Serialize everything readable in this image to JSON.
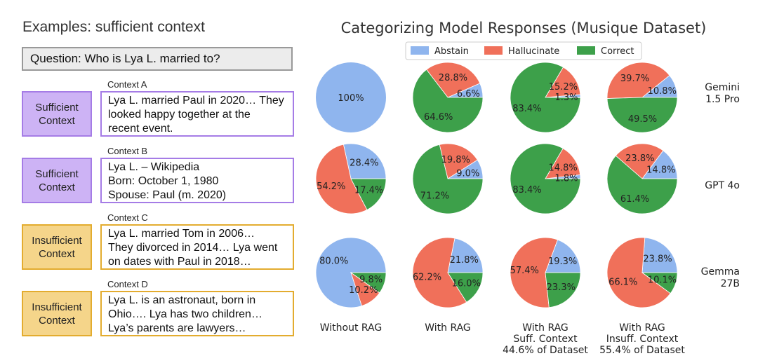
{
  "left": {
    "title": "Examples: sufficient context",
    "question": "Question: Who is Lya L. married to?",
    "examples": [
      {
        "context_label": "Context A",
        "tag": [
          "Sufficient",
          "Context"
        ],
        "kind": "suff",
        "lines": [
          "Lya L. married Paul in 2020… They",
          "looked happy together at the",
          "recent event."
        ]
      },
      {
        "context_label": "Context B",
        "tag": [
          "Sufficient",
          "Context"
        ],
        "kind": "suff",
        "lines": [
          "Lya L. – Wikipedia",
          "Born: October 1, 1980",
          "Spouse: Paul (m. 2020)"
        ]
      },
      {
        "context_label": "Context C",
        "tag": [
          "Insufficient",
          "Context"
        ],
        "kind": "insuff",
        "lines": [
          "Lya L. married Tom in 2006…",
          "They divorced in 2014… Lya went",
          "on dates with Paul in 2018…"
        ]
      },
      {
        "context_label": "Context D",
        "tag": [
          "Insufficient",
          "Context"
        ],
        "kind": "insuff",
        "lines": [
          "Lya L. is an astronaut, born in",
          "Ohio…. Lya has two children…",
          "Lya’s parents are lawyers…"
        ]
      }
    ]
  },
  "chart_data": {
    "type": "pie",
    "title": "Categorizing Model Responses (Musique Dataset)",
    "legend": [
      {
        "name": "Abstain",
        "color": "#8fb5ee"
      },
      {
        "name": "Hallucinate",
        "color": "#f0705a"
      },
      {
        "name": "Correct",
        "color": "#3da04a"
      }
    ],
    "legend_position": "top",
    "columns": [
      [
        "Without RAG"
      ],
      [
        "With RAG"
      ],
      [
        "With RAG",
        "Suff. Context",
        "44.6% of Dataset"
      ],
      [
        "With RAG",
        "Insuff. Context",
        "55.4% of Dataset"
      ]
    ],
    "rows": [
      [
        "Gemini",
        "1.5 Pro"
      ],
      [
        "GPT 4o"
      ],
      [
        "Gemma",
        "27B"
      ]
    ],
    "pies": [
      [
        {
          "abstain": 100,
          "hallucinate": 0,
          "correct": 0,
          "labels": [
            "100%",
            "",
            ""
          ]
        },
        {
          "abstain": 6.6,
          "hallucinate": 28.8,
          "correct": 64.6,
          "labels": [
            "6.6%",
            "28.8%",
            "64.6%"
          ]
        },
        {
          "abstain": 1.3,
          "hallucinate": 15.2,
          "correct": 83.4,
          "labels": [
            "1.3%",
            "15.2%",
            "83.4%"
          ]
        },
        {
          "abstain": 10.8,
          "hallucinate": 39.7,
          "correct": 49.5,
          "labels": [
            "10.8%",
            "39.7%",
            "49.5%"
          ]
        }
      ],
      [
        {
          "abstain": 28.4,
          "hallucinate": 54.2,
          "correct": 17.4,
          "labels": [
            "28.4%",
            "54.2%",
            "17.4%"
          ]
        },
        {
          "abstain": 9.0,
          "hallucinate": 19.8,
          "correct": 71.2,
          "labels": [
            "9.0%",
            "19.8%",
            "71.2%"
          ]
        },
        {
          "abstain": 1.8,
          "hallucinate": 14.8,
          "correct": 83.4,
          "labels": [
            "1.8%",
            "14.8%",
            "83.4%"
          ]
        },
        {
          "abstain": 14.8,
          "hallucinate": 23.8,
          "correct": 61.4,
          "labels": [
            "14.8%",
            "23.8%",
            "61.4%"
          ]
        }
      ],
      [
        {
          "abstain": 80.0,
          "hallucinate": 10.2,
          "correct": 9.8,
          "labels": [
            "80.0%",
            "10.2%",
            "9.8%"
          ]
        },
        {
          "abstain": 21.8,
          "hallucinate": 62.2,
          "correct": 16.0,
          "labels": [
            "21.8%",
            "62.2%",
            "16.0%"
          ]
        },
        {
          "abstain": 19.3,
          "hallucinate": 57.4,
          "correct": 23.3,
          "labels": [
            "19.3%",
            "57.4%",
            "23.3%"
          ]
        },
        {
          "abstain": 23.8,
          "hallucinate": 66.1,
          "correct": 10.1,
          "labels": [
            "23.8%",
            "66.1%",
            "10.1%"
          ]
        }
      ]
    ]
  }
}
